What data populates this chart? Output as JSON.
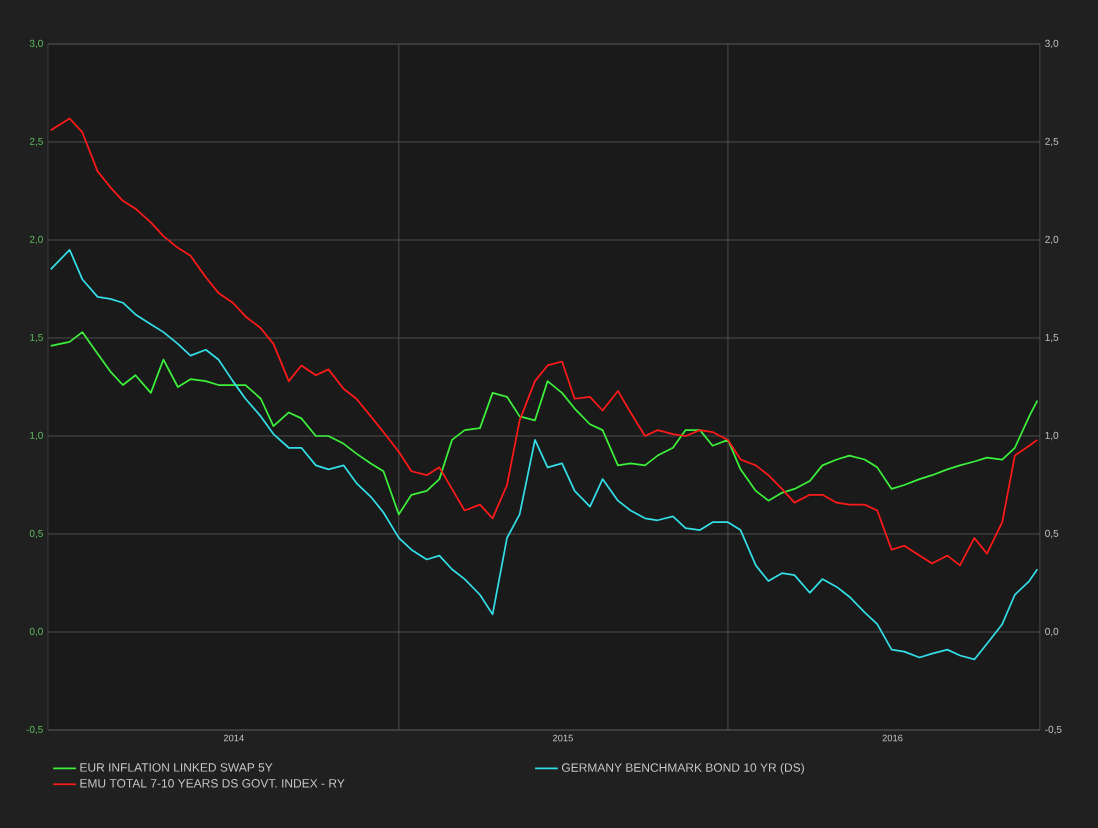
{
  "chart_data": {
    "type": "line",
    "x": [
      "2013-12-11",
      "2014-01-01",
      "2014-01-15",
      "2014-02-01",
      "2014-02-15",
      "2014-03-01",
      "2014-03-15",
      "2014-04-01",
      "2014-04-15",
      "2014-05-01",
      "2014-05-15",
      "2014-06-01",
      "2014-06-15",
      "2014-07-01",
      "2014-07-15",
      "2014-08-01",
      "2014-08-15",
      "2014-09-01",
      "2014-09-15",
      "2014-10-01",
      "2014-10-15",
      "2014-11-01",
      "2014-11-15",
      "2014-12-01",
      "2014-12-15",
      "2015-01-01",
      "2015-01-15",
      "2015-02-01",
      "2015-02-15",
      "2015-03-01",
      "2015-03-15",
      "2015-04-01",
      "2015-04-15",
      "2015-05-01",
      "2015-05-15",
      "2015-06-01",
      "2015-06-15",
      "2015-07-01",
      "2015-07-15",
      "2015-08-01",
      "2015-08-15",
      "2015-09-01",
      "2015-09-15",
      "2015-10-01",
      "2015-10-15",
      "2015-11-01",
      "2015-11-15",
      "2015-12-01",
      "2015-12-15",
      "2016-01-01",
      "2016-01-15",
      "2016-02-01",
      "2016-02-15",
      "2016-03-01",
      "2016-03-15",
      "2016-04-01",
      "2016-04-15",
      "2016-05-01",
      "2016-05-15",
      "2016-06-01",
      "2016-06-15",
      "2016-07-01",
      "2016-07-15",
      "2016-08-01",
      "2016-08-15",
      "2016-09-01",
      "2016-09-15",
      "2016-10-01",
      "2016-10-15",
      "2016-11-01",
      "2016-11-15",
      "2016-12-01",
      "2016-12-10"
    ],
    "series": [
      {
        "name": "EUR INFLATION LINKED SWAP 5Y",
        "color": "#3cf03c",
        "values": [
          1.46,
          1.48,
          1.53,
          1.42,
          1.33,
          1.26,
          1.31,
          1.22,
          1.39,
          1.25,
          1.29,
          1.28,
          1.26,
          1.26,
          1.26,
          1.19,
          1.05,
          1.12,
          1.09,
          1.0,
          1.0,
          0.96,
          0.91,
          0.86,
          0.82,
          0.6,
          0.7,
          0.72,
          0.78,
          0.98,
          1.03,
          1.04,
          1.22,
          1.2,
          1.1,
          1.08,
          1.28,
          1.22,
          1.14,
          1.06,
          1.03,
          0.85,
          0.86,
          0.85,
          0.9,
          0.94,
          1.03,
          1.03,
          0.95,
          0.98,
          0.83,
          0.72,
          0.67,
          0.71,
          0.73,
          0.77,
          0.85,
          0.88,
          0.9,
          0.88,
          0.84,
          0.73,
          0.75,
          0.78,
          0.8,
          0.83,
          0.85,
          0.87,
          0.89,
          0.88,
          0.94,
          1.1,
          1.18
        ]
      },
      {
        "name": "GERMANY BENCHMARK BOND 10 YR (DS)",
        "color": "#33dde6",
        "values": [
          1.85,
          1.95,
          1.8,
          1.71,
          1.7,
          1.68,
          1.62,
          1.57,
          1.53,
          1.47,
          1.41,
          1.44,
          1.39,
          1.28,
          1.19,
          1.1,
          1.01,
          0.94,
          0.94,
          0.85,
          0.83,
          0.85,
          0.76,
          0.69,
          0.61,
          0.48,
          0.42,
          0.37,
          0.39,
          0.32,
          0.27,
          0.19,
          0.09,
          0.48,
          0.6,
          0.98,
          0.84,
          0.86,
          0.72,
          0.64,
          0.78,
          0.67,
          0.62,
          0.58,
          0.57,
          0.59,
          0.53,
          0.52,
          0.56,
          0.56,
          0.52,
          0.34,
          0.26,
          0.3,
          0.29,
          0.2,
          0.27,
          0.23,
          0.18,
          0.1,
          0.04,
          -0.09,
          -0.1,
          -0.13,
          -0.11,
          -0.09,
          -0.12,
          -0.14,
          -0.06,
          0.04,
          0.19,
          0.26,
          0.32
        ]
      },
      {
        "name": "EMU TOTAL 7-10 YEARS DS GOVT. INDEX - RY",
        "color": "#ff1a1a",
        "values": [
          2.56,
          2.62,
          2.55,
          2.35,
          2.27,
          2.2,
          2.16,
          2.09,
          2.02,
          1.96,
          1.92,
          1.81,
          1.73,
          1.68,
          1.61,
          1.55,
          1.47,
          1.28,
          1.36,
          1.31,
          1.34,
          1.24,
          1.19,
          1.1,
          1.02,
          0.92,
          0.82,
          0.8,
          0.84,
          0.73,
          0.62,
          0.65,
          0.58,
          0.75,
          1.08,
          1.28,
          1.36,
          1.38,
          1.19,
          1.2,
          1.13,
          1.23,
          1.12,
          1.0,
          1.03,
          1.01,
          1.0,
          1.03,
          1.02,
          0.98,
          0.88,
          0.85,
          0.8,
          0.73,
          0.66,
          0.7,
          0.7,
          0.66,
          0.65,
          0.65,
          0.62,
          0.42,
          0.44,
          0.39,
          0.35,
          0.39,
          0.34,
          0.48,
          0.4,
          0.56,
          0.9,
          0.95,
          0.98
        ]
      }
    ],
    "xlim": [
      "2013-12-08",
      "2016-12-13"
    ],
    "xticks": [
      {
        "value": "2014-07-02",
        "label": "2014"
      },
      {
        "value": "2015-01-01",
        "label": null
      },
      {
        "value": "2015-07-02",
        "label": "2015"
      },
      {
        "value": "2016-01-01",
        "label": null
      },
      {
        "value": "2016-07-02",
        "label": "2016"
      }
    ],
    "ylim": [
      -0.5,
      3.0
    ],
    "yticks": [
      {
        "value": -0.5,
        "label": "-0,5"
      },
      {
        "value": 0,
        "label": "0,0"
      },
      {
        "value": 0.5,
        "label": "0,5"
      },
      {
        "value": 1.0,
        "label": "1,0"
      },
      {
        "value": 1.5,
        "label": "1,5"
      },
      {
        "value": 2.0,
        "label": "2,0"
      },
      {
        "value": 2.5,
        "label": "2,5"
      },
      {
        "value": 3.0,
        "label": "3,0"
      }
    ],
    "y2lim": [
      -0.5,
      3.0
    ],
    "y2ticks": [
      {
        "value": -0.5,
        "label": "-0,5"
      },
      {
        "value": 0,
        "label": "0,0"
      },
      {
        "value": 0.5,
        "label": "0,5"
      },
      {
        "value": 1.0,
        "label": "1,0"
      },
      {
        "value": 1.5,
        "label": "1,5"
      },
      {
        "value": 2.0,
        "label": "2,0"
      },
      {
        "value": 2.5,
        "label": "2,5"
      },
      {
        "value": 3.0,
        "label": "3,0"
      }
    ],
    "grid": true,
    "legend": "bottom"
  }
}
